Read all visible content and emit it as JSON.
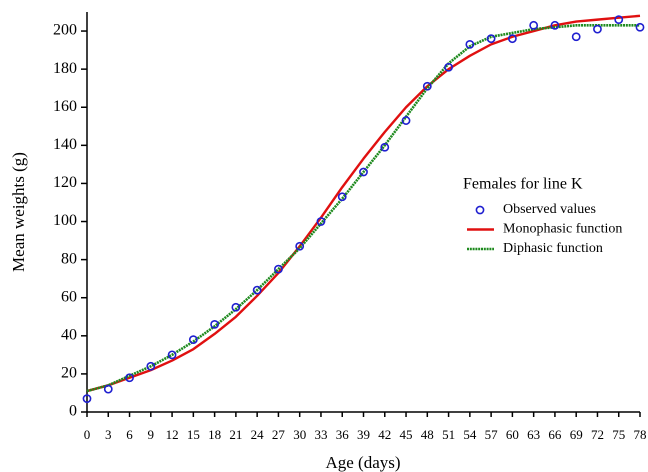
{
  "chart_data": {
    "type": "line",
    "xlabel": "Age (days)",
    "ylabel": "Mean weights (g)",
    "legend_title": "Females for line K",
    "legend_position": "center-right",
    "x": [
      0,
      3,
      6,
      9,
      12,
      15,
      18,
      21,
      24,
      27,
      30,
      33,
      36,
      39,
      42,
      45,
      48,
      51,
      54,
      57,
      60,
      63,
      66,
      69,
      72,
      75,
      78
    ],
    "series": [
      {
        "name": "Observed values",
        "color": "#1f1fd0",
        "style": "markers",
        "values": [
          7,
          12,
          18,
          24,
          30,
          38,
          46,
          55,
          64,
          75,
          87,
          100,
          113,
          126,
          139,
          153,
          171,
          181,
          193,
          196,
          196,
          203,
          203,
          197,
          201,
          206,
          202
        ]
      },
      {
        "name": "Monophasic function",
        "color": "#e01010",
        "style": "line",
        "values": [
          11,
          14,
          18,
          22,
          27,
          33,
          41,
          50,
          61,
          73,
          87,
          102,
          118,
          133,
          147,
          160,
          171,
          180,
          187,
          193,
          197,
          200,
          203,
          205,
          206,
          207,
          208
        ]
      },
      {
        "name": "Diphasic function",
        "color": "#1e8a1e",
        "style": "dotted-line",
        "values": [
          11,
          14,
          19,
          24,
          30,
          37,
          45,
          54,
          64,
          75,
          86,
          99,
          112,
          126,
          140,
          155,
          170,
          183,
          192,
          197,
          199,
          201,
          202,
          203,
          203,
          203,
          203
        ]
      }
    ],
    "xlim": [
      0,
      78
    ],
    "xticks": [
      0,
      3,
      6,
      9,
      12,
      15,
      18,
      21,
      24,
      27,
      30,
      33,
      36,
      39,
      42,
      45,
      48,
      51,
      54,
      57,
      60,
      63,
      66,
      69,
      72,
      75,
      78
    ],
    "ylim": [
      0,
      210
    ],
    "yticks": [
      0,
      20,
      40,
      60,
      80,
      100,
      120,
      140,
      160,
      180,
      200
    ],
    "grid": false
  }
}
